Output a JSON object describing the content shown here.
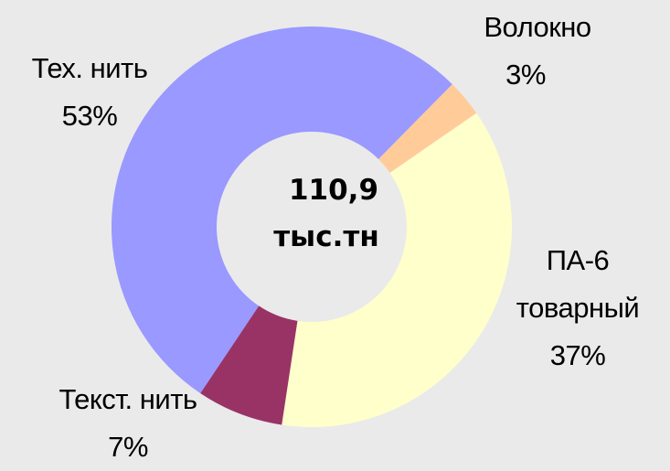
{
  "chart_data": {
    "type": "donut",
    "categories": [
      "Волокно",
      "ПА-6 товарный",
      "Текст. нить",
      "Тех. нить"
    ],
    "values": [
      3,
      37,
      7,
      53
    ],
    "value_labels": [
      "3%",
      "37%",
      "7%",
      "53%"
    ],
    "colors": [
      "#ffcc99",
      "#ffffcc",
      "#993366",
      "#9999ff"
    ],
    "annotations": [
      "110,9",
      "тыс.тн"
    ]
  }
}
